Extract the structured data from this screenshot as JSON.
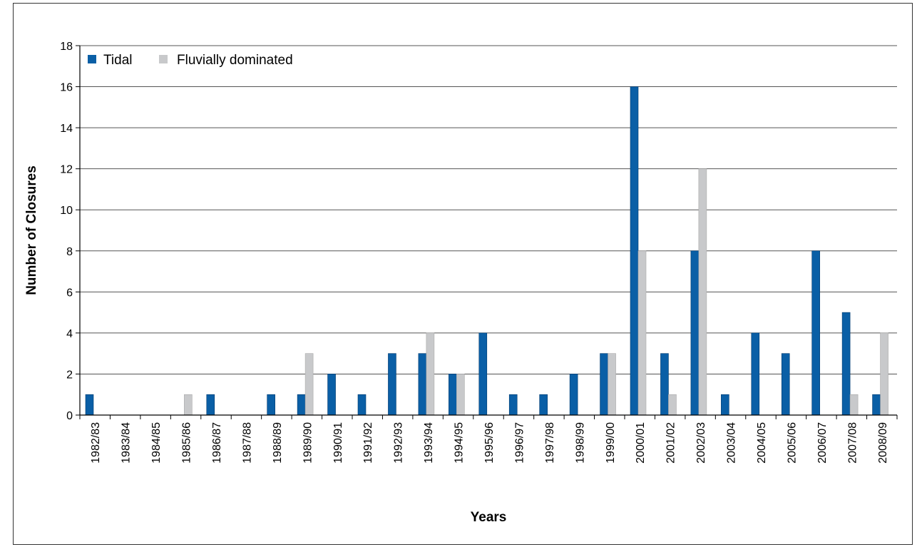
{
  "chart_data": {
    "type": "bar",
    "title": "",
    "xlabel": "Years",
    "ylabel": "Number of Closures",
    "ylim": [
      0,
      18
    ],
    "yticks": [
      0,
      2,
      4,
      6,
      8,
      10,
      12,
      14,
      16,
      18
    ],
    "grid": true,
    "legend_position": "top-left",
    "categories": [
      "1982/83",
      "1983/84",
      "1984/85",
      "1985/86",
      "1986/87",
      "1987/88",
      "1988/89",
      "1989/90",
      "1990/91",
      "1991/92",
      "1992/93",
      "1993/94",
      "1994/95",
      "1995/96",
      "1996/97",
      "1997/98",
      "1998/99",
      "1999/00",
      "2000/01",
      "2001/02",
      "2002/03",
      "2003/04",
      "2004/05",
      "2005/06",
      "2006/07",
      "2007/08",
      "2008/09"
    ],
    "series": [
      {
        "name": "Tidal",
        "color": "#0a5fa6",
        "values": [
          1,
          0,
          0,
          0,
          1,
          0,
          1,
          1,
          2,
          1,
          3,
          3,
          2,
          4,
          1,
          1,
          2,
          3,
          16,
          3,
          8,
          1,
          4,
          3,
          8,
          5,
          1
        ]
      },
      {
        "name": "Fluvially dominated",
        "color": "#c8c9cb",
        "values": [
          0,
          0,
          0,
          1,
          0,
          0,
          0,
          3,
          0,
          0,
          0,
          4,
          2,
          0,
          0,
          0,
          0,
          3,
          8,
          1,
          12,
          0,
          0,
          0,
          0,
          1,
          4
        ]
      }
    ]
  }
}
